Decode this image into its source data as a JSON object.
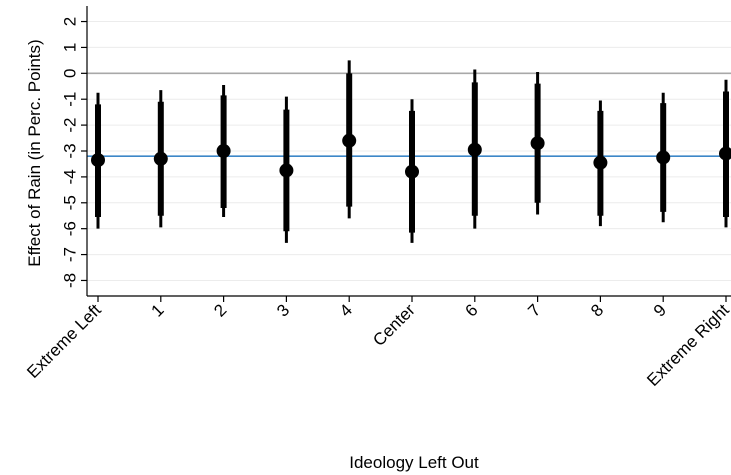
{
  "chart_data": {
    "type": "scatter",
    "style": "coefficient plot with confidence intervals",
    "title": "",
    "xlabel": "Ideology Left Out",
    "ylabel": "Effect of Rain (in Perc. Points)",
    "ylim": [
      -8.6,
      2.6
    ],
    "yticks": [
      2,
      1,
      0,
      -1,
      -2,
      -3,
      -4,
      -5,
      -6,
      -7,
      -8
    ],
    "ytick_labels": [
      "2",
      "1",
      "0",
      "-1",
      "-2",
      "-3",
      "-4",
      "-5",
      "-6",
      "-7",
      "-8"
    ],
    "grid": "horizontal",
    "reference_lines": [
      {
        "value": 0,
        "color": "#a8a8a8"
      },
      {
        "value": -3.2,
        "color": "#3d87c8"
      }
    ],
    "categories": [
      "Extreme Left",
      "1",
      "2",
      "3",
      "4",
      "Center",
      "6",
      "7",
      "8",
      "9",
      "Extreme Right"
    ],
    "series": [
      {
        "estimates": [
          -3.35,
          -3.3,
          -3.0,
          -3.75,
          -2.6,
          -3.8,
          -2.95,
          -2.7,
          -3.45,
          -3.25,
          -3.1
        ],
        "ci95_low": [
          -6.0,
          -5.95,
          -5.55,
          -6.55,
          -5.6,
          -6.55,
          -6.0,
          -5.45,
          -5.9,
          -5.75,
          -5.95
        ],
        "ci95_high": [
          -0.75,
          -0.65,
          -0.45,
          -0.9,
          0.5,
          -1.0,
          0.15,
          0.05,
          -1.05,
          -0.75,
          -0.25
        ],
        "ci90_low": [
          -5.55,
          -5.5,
          -5.2,
          -6.1,
          -5.15,
          -6.15,
          -5.5,
          -5.0,
          -5.5,
          -5.35,
          -5.55
        ],
        "ci90_high": [
          -1.2,
          -1.1,
          -0.85,
          -1.4,
          0.0,
          -1.45,
          -0.35,
          -0.4,
          -1.45,
          -1.15,
          -0.7
        ]
      }
    ],
    "colors": {
      "points": "#000000",
      "zero_line": "#a8a8a8",
      "mean_line": "#3d87c8",
      "grid": "#ececec"
    }
  }
}
